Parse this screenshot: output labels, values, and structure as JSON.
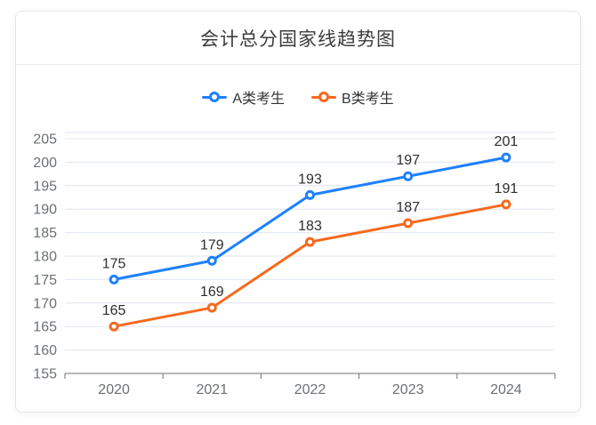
{
  "card": {
    "title": "会计总分国家线趋势图"
  },
  "chart_data": {
    "type": "line",
    "title": "会计总分国家线趋势图",
    "categories": [
      "2020",
      "2021",
      "2022",
      "2023",
      "2024"
    ],
    "series": [
      {
        "name": "A类考生",
        "color": "#1e80ff",
        "values": [
          175,
          179,
          193,
          197,
          201
        ]
      },
      {
        "name": "B类考生",
        "color": "#f56a1e",
        "values": [
          165,
          169,
          183,
          187,
          191
        ]
      }
    ],
    "ylim": [
      155,
      205
    ],
    "y_tick_step": 5,
    "legend_position": "top",
    "grid": true,
    "point_labels": true,
    "styles": {
      "gridline_color": "#e0e6f1",
      "axis_color": "#6E7079",
      "tick_label_color": "#6b7078",
      "point_label_color": "#2e2e2e"
    }
  }
}
